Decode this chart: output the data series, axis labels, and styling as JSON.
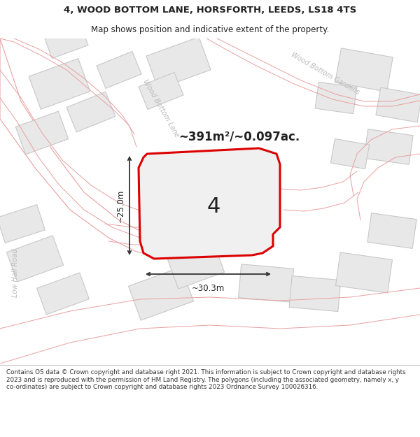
{
  "title_line1": "4, WOOD BOTTOM LANE, HORSFORTH, LEEDS, LS18 4TS",
  "title_line2": "Map shows position and indicative extent of the property.",
  "area_text": "~391m²/~0.097ac.",
  "number_label": "4",
  "dim_width": "~30.3m",
  "dim_height": "~25.0m",
  "road_label_left": "Low Hall Road",
  "road_label_top_right": "Wood Bottom Gardens",
  "road_label_diagonal": "Wood Bottom Lane",
  "footer_text": "Contains OS data © Crown copyright and database right 2021. This information is subject to Crown copyright and database rights 2023 and is reproduced with the permission of HM Land Registry. The polygons (including the associated geometry, namely x, y co-ordinates) are subject to Crown copyright and database rights 2023 Ordnance Survey 100026316.",
  "map_bg": "#ffffff",
  "highlight_color": "#dd0000",
  "road_outline_color": "#e8a0a0",
  "building_fill": "#e8e8e8",
  "building_edge": "#c8c8c8",
  "road_label_color": "#aaaaaa",
  "text_color": "#222222",
  "title_bg": "#ffffff",
  "footer_bg": "#ffffff",
  "sep_color": "#cccccc"
}
